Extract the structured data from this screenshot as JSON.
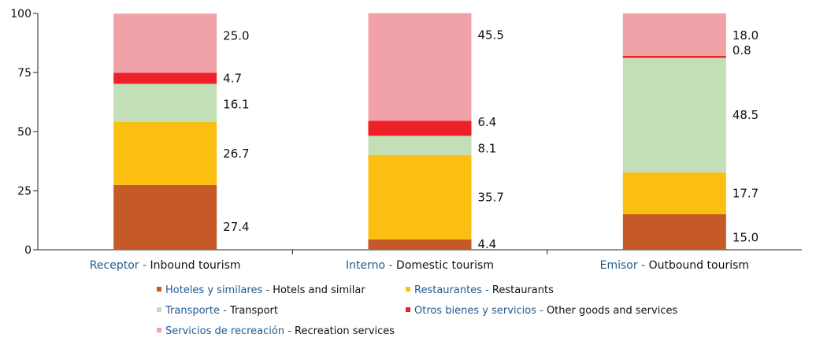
{
  "chart_data": {
    "type": "bar",
    "stacked": true,
    "ylim": [
      0,
      100
    ],
    "yticks": [
      0,
      25,
      50,
      75,
      100
    ],
    "grid": false,
    "legend_position": "bottom",
    "categories": [
      {
        "es": "Receptor",
        "en": "Inbound tourism"
      },
      {
        "es": "Interno",
        "en": "Domestic tourism"
      },
      {
        "es": "Emisor",
        "en": "Outbound tourism"
      }
    ],
    "series": [
      {
        "name_es": "Hoteles y similares",
        "name_en": "Hotels and similar",
        "color": "#c55a28",
        "values": [
          27.4,
          4.4,
          15.0
        ],
        "labels": [
          "27.4",
          "4.4",
          "15.0"
        ]
      },
      {
        "name_es": "Restaurantes",
        "name_en": "Restaurants",
        "color": "#fbbf12",
        "values": [
          26.7,
          35.7,
          17.7
        ],
        "labels": [
          "26.7",
          "35.7",
          "17.7"
        ]
      },
      {
        "name_es": "Transporte",
        "name_en": "Transport",
        "color": "#c2dfb7",
        "values": [
          16.1,
          8.1,
          48.5
        ],
        "labels": [
          "16.1",
          "8.1",
          "48.5"
        ]
      },
      {
        "name_es": "Otros bienes y servicios",
        "name_en": "Other goods and services",
        "color": "#ee2027",
        "values": [
          4.7,
          6.4,
          0.8
        ],
        "labels": [
          "4.7",
          "6.4",
          "0.8"
        ]
      },
      {
        "name_es": "Servicios de recreación",
        "name_en": "Recreation services",
        "color": "#f0a2a8",
        "values": [
          25.0,
          45.5,
          18.0
        ],
        "labels": [
          "25.0",
          "45.5",
          "18.0"
        ]
      }
    ]
  }
}
